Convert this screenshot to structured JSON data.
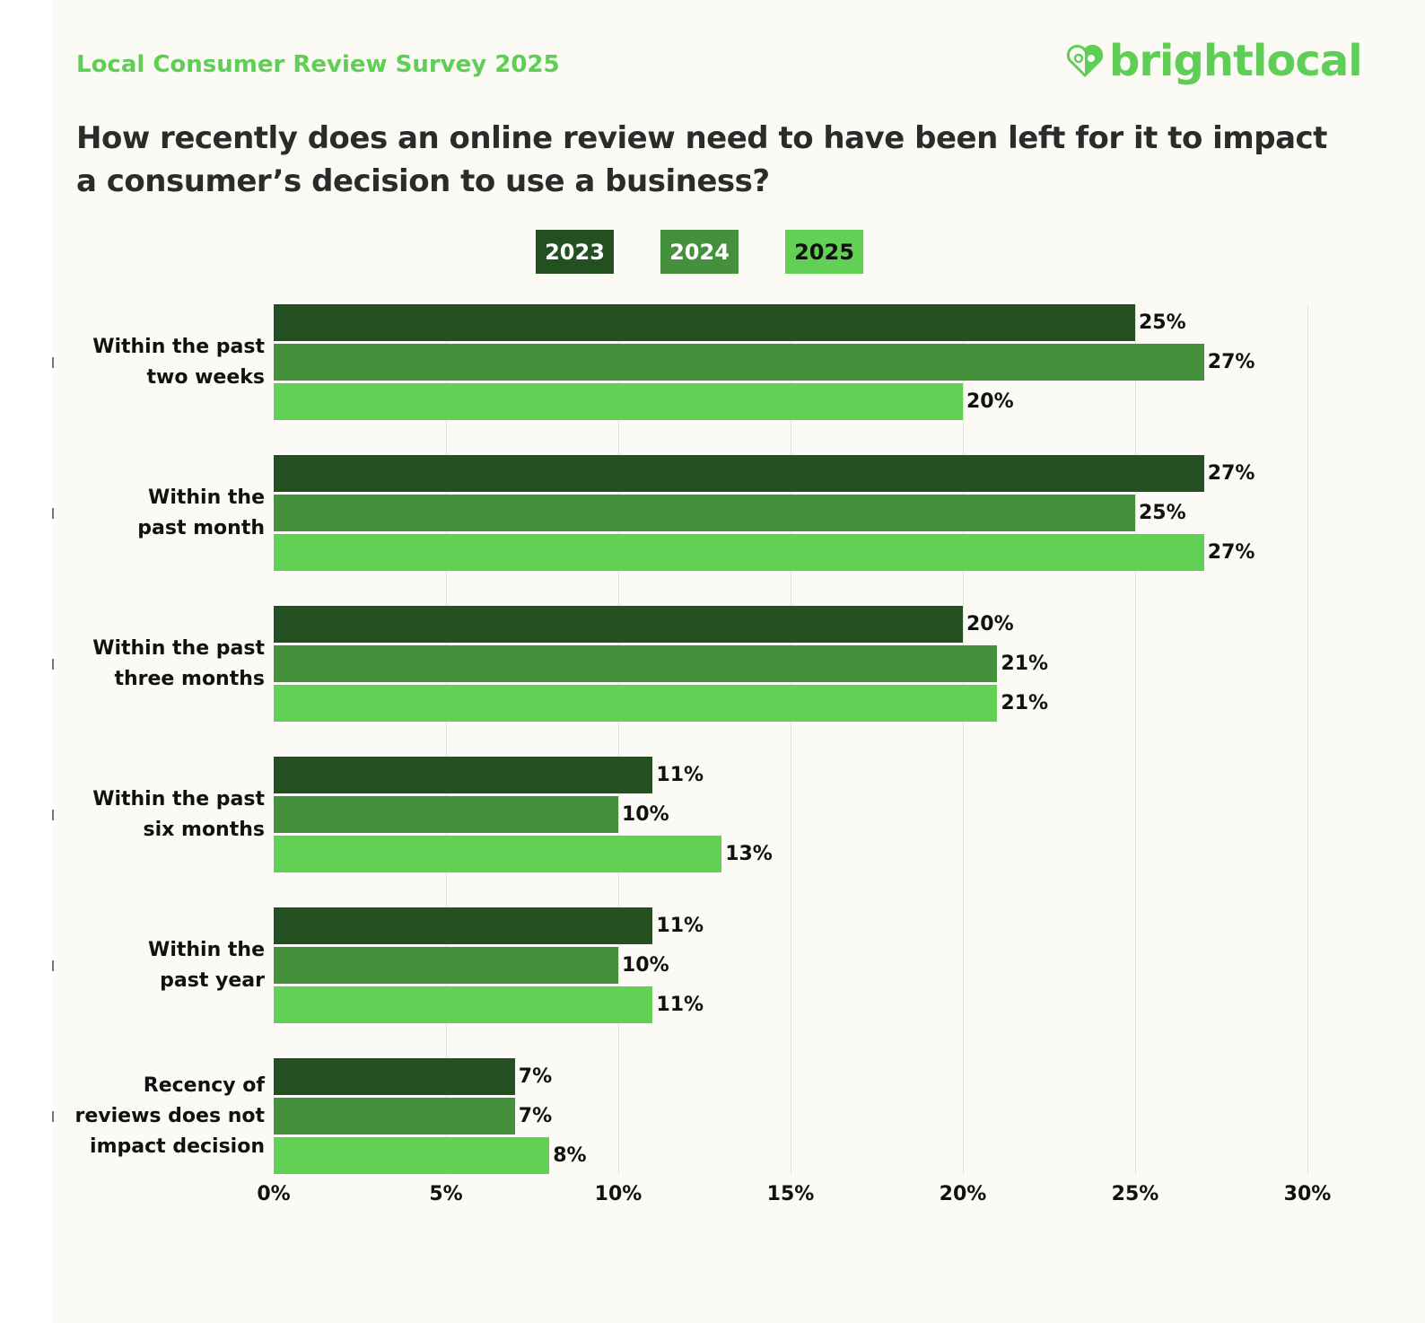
{
  "header": {
    "subtitle": "Local Consumer Review Survey 2025",
    "logo_text": "brightlocal",
    "logo_icon": "heart-pin-icon"
  },
  "chart_data": {
    "type": "bar",
    "orientation": "horizontal",
    "title": "How recently does an online review need to have been left for it to impact a consumer’s decision to use a business?",
    "categories": [
      "Within the past\ntwo weeks",
      "Within the\npast month",
      "Within the past\nthree months",
      "Within the past\nsix months",
      "Within the\npast year",
      "Recency of\nreviews does not\nimpact decision"
    ],
    "series": [
      {
        "name": "2023",
        "color": "#235021",
        "values": [
          25,
          27,
          20,
          11,
          11,
          7
        ]
      },
      {
        "name": "2024",
        "color": "#45903c",
        "values": [
          27,
          25,
          21,
          10,
          10,
          7
        ]
      },
      {
        "name": "2025",
        "color": "#62cf55",
        "values": [
          20,
          27,
          21,
          13,
          11,
          8
        ]
      }
    ],
    "xlim": [
      0,
      30
    ],
    "x_ticks": [
      "0%",
      "5%",
      "10%",
      "15%",
      "20%",
      "25%",
      "30%"
    ],
    "grid": true,
    "legend_position": "top-center",
    "value_suffix": "%"
  }
}
